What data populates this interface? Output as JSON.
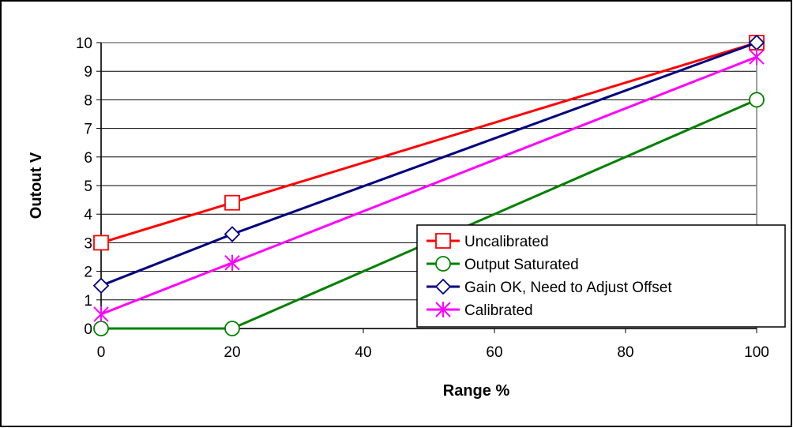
{
  "chart_data": {
    "type": "line",
    "title": "",
    "xlabel": "Range %",
    "ylabel": "Outout V",
    "xlim": [
      0,
      100
    ],
    "ylim": [
      0,
      10
    ],
    "x_ticks": [
      "0",
      "20",
      "40",
      "60",
      "80",
      "100"
    ],
    "y_ticks": [
      "0",
      "1",
      "2",
      "3",
      "4",
      "5",
      "6",
      "7",
      "8",
      "9",
      "10"
    ],
    "grid": "horizontal",
    "legend_position": "bottom-right",
    "series": [
      {
        "name": "Uncalibrated",
        "color": "#ff0000",
        "marker": "square",
        "points": [
          {
            "x": 0,
            "y": 3.0
          },
          {
            "x": 20,
            "y": 4.4
          },
          {
            "x": 100,
            "y": 10.0
          }
        ]
      },
      {
        "name": "Output Saturated",
        "color": "#008000",
        "marker": "circle",
        "points": [
          {
            "x": 0,
            "y": 0.0
          },
          {
            "x": 20,
            "y": 0.0
          },
          {
            "x": 100,
            "y": 8.0
          }
        ]
      },
      {
        "name": "Gain OK, Need to Adjust Offset",
        "color": "#000080",
        "marker": "diamond",
        "points": [
          {
            "x": 0,
            "y": 1.5
          },
          {
            "x": 20,
            "y": 3.3
          },
          {
            "x": 100,
            "y": 10.0
          }
        ]
      },
      {
        "name": "Calibrated",
        "color": "#ff00ff",
        "marker": "star",
        "points": [
          {
            "x": 0,
            "y": 0.5
          },
          {
            "x": 20,
            "y": 2.3
          },
          {
            "x": 100,
            "y": 9.5
          }
        ]
      }
    ]
  }
}
